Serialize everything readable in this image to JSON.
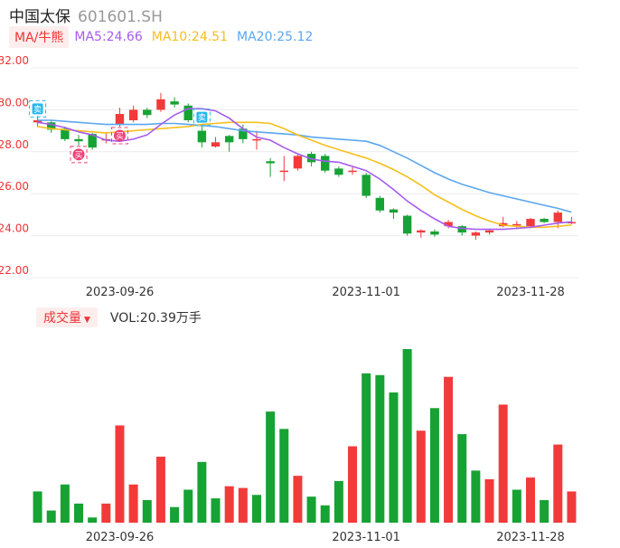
{
  "header": {
    "name": "中国太保",
    "code": "601601.SH"
  },
  "ma_bar": {
    "toggle_label": "MA/牛熊",
    "ma5": "MA5:24.66",
    "ma10": "MA10:24.51",
    "ma20": "MA20:25.12"
  },
  "volume_bar": {
    "toggle_label": "成交量",
    "vol_text": "VOL:20.39万手"
  },
  "colors": {
    "up": "#f23a3a",
    "down": "#17a234",
    "ma5": "#a65bf0",
    "ma10": "#f5bf1c",
    "ma20": "#5aa6f0",
    "axis_label": "#e33"
  },
  "icons": {
    "sell_marker": "sell-marker-icon",
    "buy_marker": "buy-marker-icon"
  },
  "chart_data": [
    {
      "type": "candlestick",
      "title": "",
      "y_ticks": [
        "32.00",
        "30.00",
        "28.00",
        "26.00",
        "24.00",
        "22.00"
      ],
      "ylim": [
        22,
        32
      ],
      "x_ticks": [
        "2023-09-26",
        "2023-11-01",
        "2023-11-28"
      ],
      "candles": [
        {
          "o": 29.4,
          "c": 29.5,
          "h": 29.7,
          "l": 29.2
        },
        {
          "o": 29.4,
          "c": 29.05,
          "h": 29.5,
          "l": 28.9
        },
        {
          "o": 29.1,
          "c": 28.6,
          "h": 29.2,
          "l": 28.5
        },
        {
          "o": 28.6,
          "c": 28.5,
          "h": 28.8,
          "l": 28.3
        },
        {
          "o": 28.85,
          "c": 28.2,
          "h": 28.9,
          "l": 28.1
        },
        {
          "o": 28.6,
          "c": 28.6,
          "h": 28.9,
          "l": 28.4
        },
        {
          "o": 29.3,
          "c": 29.8,
          "h": 30.1,
          "l": 29.2
        },
        {
          "o": 29.5,
          "c": 30.0,
          "h": 30.2,
          "l": 29.4
        },
        {
          "o": 30.0,
          "c": 29.75,
          "h": 30.1,
          "l": 29.6
        },
        {
          "o": 30.0,
          "c": 30.5,
          "h": 30.8,
          "l": 29.9
        },
        {
          "o": 30.4,
          "c": 30.25,
          "h": 30.6,
          "l": 30.1
        },
        {
          "o": 30.2,
          "c": 29.5,
          "h": 30.3,
          "l": 29.4
        },
        {
          "o": 29.0,
          "c": 28.45,
          "h": 29.3,
          "l": 28.2
        },
        {
          "o": 28.25,
          "c": 28.45,
          "h": 28.7,
          "l": 28.2
        },
        {
          "o": 28.75,
          "c": 28.45,
          "h": 28.8,
          "l": 28.0
        },
        {
          "o": 29.1,
          "c": 28.6,
          "h": 29.3,
          "l": 28.4
        },
        {
          "o": 28.6,
          "c": 28.6,
          "h": 29.0,
          "l": 28.1
        },
        {
          "o": 27.55,
          "c": 27.45,
          "h": 27.7,
          "l": 26.8
        },
        {
          "o": 27.1,
          "c": 27.1,
          "h": 27.8,
          "l": 26.6
        },
        {
          "o": 27.2,
          "c": 27.8,
          "h": 27.9,
          "l": 27.1
        },
        {
          "o": 27.9,
          "c": 27.5,
          "h": 28.0,
          "l": 27.3
        },
        {
          "o": 27.8,
          "c": 27.1,
          "h": 27.9,
          "l": 27.0
        },
        {
          "o": 27.2,
          "c": 26.9,
          "h": 27.3,
          "l": 26.8
        },
        {
          "o": 27.1,
          "c": 27.1,
          "h": 27.3,
          "l": 26.9
        },
        {
          "o": 26.9,
          "c": 25.9,
          "h": 27.0,
          "l": 25.8
        },
        {
          "o": 25.8,
          "c": 25.2,
          "h": 25.9,
          "l": 25.1
        },
        {
          "o": 25.25,
          "c": 25.1,
          "h": 25.3,
          "l": 24.8
        },
        {
          "o": 24.95,
          "c": 24.1,
          "h": 25.0,
          "l": 24.0
        },
        {
          "o": 24.15,
          "c": 24.25,
          "h": 24.3,
          "l": 23.9
        },
        {
          "o": 24.2,
          "c": 24.05,
          "h": 24.3,
          "l": 23.95
        },
        {
          "o": 24.45,
          "c": 24.65,
          "h": 24.75,
          "l": 24.35
        },
        {
          "o": 24.45,
          "c": 24.15,
          "h": 24.5,
          "l": 24.0
        },
        {
          "o": 24.0,
          "c": 24.15,
          "h": 24.2,
          "l": 23.8
        },
        {
          "o": 24.15,
          "c": 24.25,
          "h": 24.3,
          "l": 24.05
        },
        {
          "o": 24.45,
          "c": 24.6,
          "h": 24.9,
          "l": 24.4
        },
        {
          "o": 24.55,
          "c": 24.55,
          "h": 24.7,
          "l": 24.3
        },
        {
          "o": 24.45,
          "c": 24.8,
          "h": 24.85,
          "l": 24.35
        },
        {
          "o": 24.8,
          "c": 24.65,
          "h": 24.85,
          "l": 24.6
        },
        {
          "o": 24.65,
          "c": 25.1,
          "h": 25.2,
          "l": 24.35
        },
        {
          "o": 24.6,
          "c": 24.65,
          "h": 24.9,
          "l": 24.55
        }
      ],
      "ma5": [
        29.4,
        29.3,
        29.15,
        28.95,
        28.8,
        28.55,
        28.5,
        28.6,
        28.8,
        29.3,
        29.75,
        30.05,
        30.05,
        29.95,
        29.6,
        29.1,
        28.7,
        28.55,
        28.2,
        27.9,
        27.65,
        27.55,
        27.5,
        27.3,
        27.1,
        26.7,
        26.2,
        25.65,
        25.2,
        24.8,
        24.45,
        24.35,
        24.3,
        24.3,
        24.3,
        24.35,
        24.4,
        24.5,
        24.6,
        24.66
      ],
      "ma10": [
        29.2,
        29.1,
        29.05,
        29.0,
        28.95,
        28.9,
        28.95,
        29.0,
        29.05,
        29.1,
        29.15,
        29.2,
        29.3,
        29.35,
        29.4,
        29.4,
        29.4,
        29.35,
        29.1,
        28.8,
        28.55,
        28.3,
        28.1,
        27.9,
        27.7,
        27.45,
        27.15,
        26.8,
        26.4,
        25.95,
        25.6,
        25.25,
        24.95,
        24.7,
        24.5,
        24.45,
        24.4,
        24.4,
        24.45,
        24.51
      ],
      "ma20": [
        29.5,
        29.5,
        29.45,
        29.4,
        29.35,
        29.3,
        29.3,
        29.3,
        29.3,
        29.35,
        29.35,
        29.3,
        29.25,
        29.2,
        29.1,
        29.0,
        28.95,
        28.9,
        28.85,
        28.8,
        28.7,
        28.65,
        28.6,
        28.55,
        28.5,
        28.3,
        28.0,
        27.7,
        27.35,
        27.0,
        26.7,
        26.45,
        26.25,
        26.05,
        25.9,
        25.75,
        25.6,
        25.45,
        25.3,
        25.12
      ],
      "markers": [
        {
          "kind": "sell",
          "label": "卖",
          "index": 0
        },
        {
          "kind": "buy",
          "label": "买",
          "index": 3
        },
        {
          "kind": "buy",
          "label": "买",
          "index": 6
        },
        {
          "kind": "sell",
          "label": "卖",
          "index": 12
        }
      ]
    },
    {
      "type": "bar",
      "title": "",
      "x_ticks": [
        "2023-09-26",
        "2023-11-01",
        "2023-11-28"
      ],
      "ylim": [
        0,
        100
      ],
      "values": [
        18,
        7,
        22,
        11,
        3,
        11,
        56,
        22,
        13,
        38,
        9,
        19,
        35,
        14,
        21,
        20,
        16,
        64,
        54,
        27,
        15,
        10,
        24,
        44,
        86,
        85,
        75,
        100,
        53,
        66,
        84,
        51,
        30,
        25,
        68,
        19,
        26,
        13,
        45,
        18
      ],
      "directions": [
        "d",
        "d",
        "d",
        "d",
        "d",
        "u",
        "u",
        "u",
        "d",
        "u",
        "d",
        "d",
        "d",
        "d",
        "u",
        "u",
        "d",
        "d",
        "d",
        "u",
        "d",
        "d",
        "d",
        "u",
        "d",
        "d",
        "d",
        "d",
        "u",
        "d",
        "u",
        "d",
        "d",
        "u",
        "u",
        "d",
        "u",
        "d",
        "u",
        "u"
      ]
    }
  ]
}
